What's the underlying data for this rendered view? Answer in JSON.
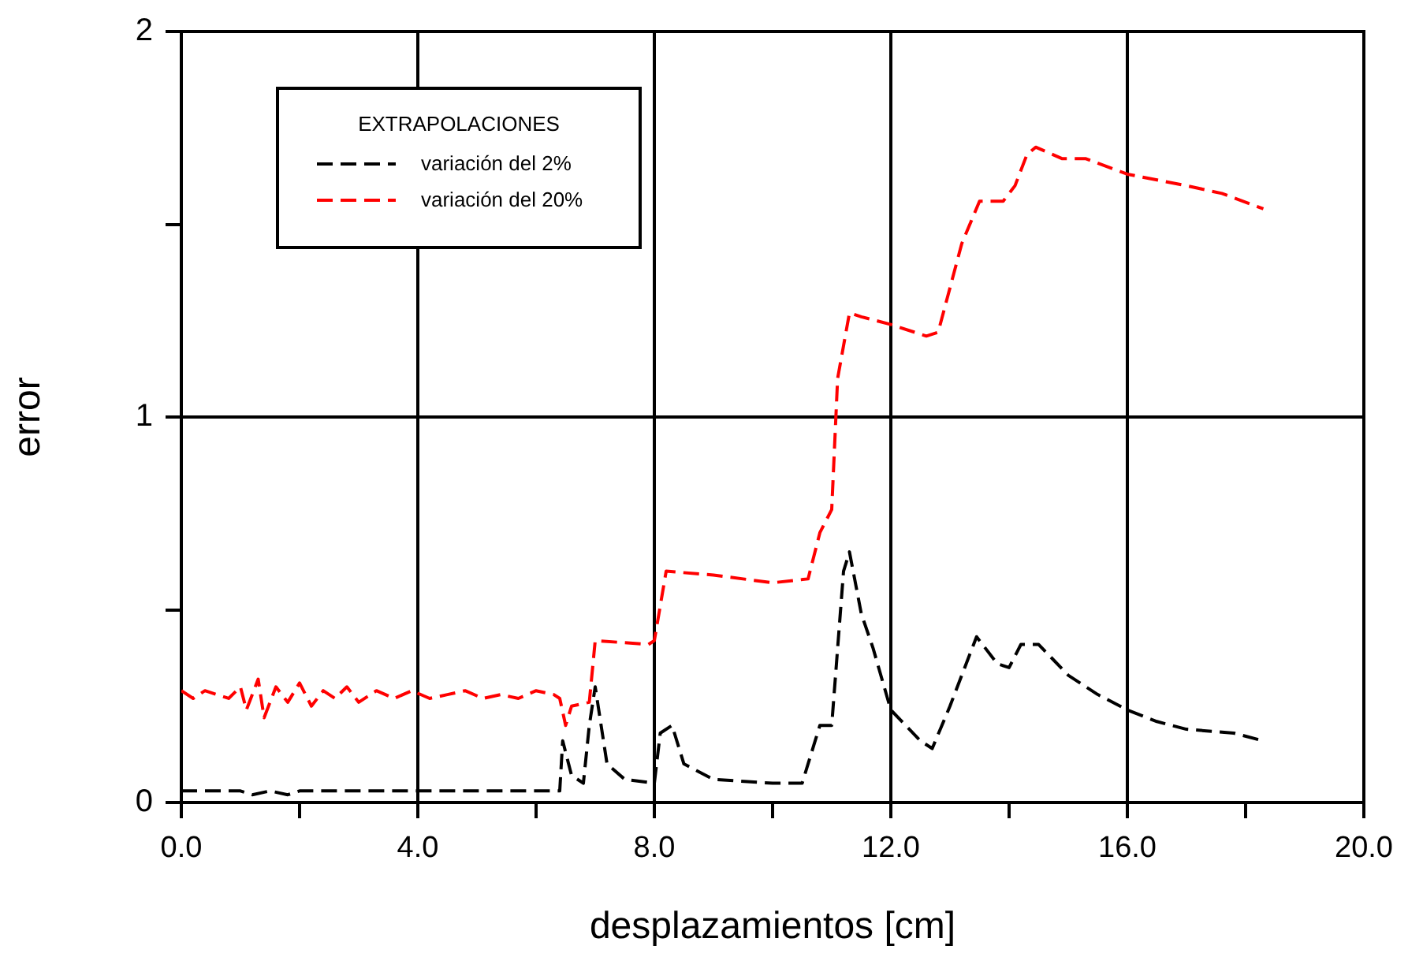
{
  "chart_data": {
    "type": "line",
    "xlabel": "desplazamientos [cm]",
    "ylabel": "error",
    "legend_title": "EXTRAPOLACIONES",
    "legend": "top left",
    "grid": true,
    "marker": "none",
    "line_style": "dashed",
    "xlim": [
      0,
      20
    ],
    "xticks": [
      {
        "value": 0,
        "label": "0.0"
      },
      {
        "value": 2,
        "label": null
      },
      {
        "value": 4,
        "label": "4.0"
      },
      {
        "value": 6,
        "label": null
      },
      {
        "value": 8,
        "label": "8.0"
      },
      {
        "value": 10,
        "label": null
      },
      {
        "value": 12,
        "label": "12.0"
      },
      {
        "value": 14,
        "label": null
      },
      {
        "value": 16,
        "label": "16.0"
      },
      {
        "value": 18,
        "label": null
      },
      {
        "value": 20,
        "label": "20.0"
      }
    ],
    "ylim": [
      0,
      2
    ],
    "yticks": [
      0,
      {
        "value": 0.5,
        "label": null
      },
      1,
      {
        "value": 1.5,
        "label": null
      },
      2
    ],
    "series": [
      {
        "name": "variación del 2%",
        "color": "#000000",
        "x": [
          0,
          1,
          1.2,
          1.5,
          1.8,
          2,
          2.5,
          3,
          4,
          5,
          6,
          6.4,
          6.45,
          6.6,
          6.8,
          6.9,
          7.0,
          7.2,
          7.5,
          8.0,
          8.1,
          8.3,
          8.5,
          9,
          10,
          10.5,
          10.7,
          10.8,
          11.0,
          11.2,
          11.3,
          11.5,
          11.7,
          12.0,
          12.5,
          12.7,
          13.0,
          13.3,
          13.45,
          13.8,
          14.0,
          14.2,
          14.5,
          15,
          15.5,
          16,
          16.5,
          17,
          17.8,
          18.3
        ],
        "values": [
          0.03,
          0.03,
          0.02,
          0.03,
          0.02,
          0.03,
          0.03,
          0.03,
          0.03,
          0.03,
          0.03,
          0.03,
          0.16,
          0.07,
          0.05,
          0.2,
          0.3,
          0.1,
          0.06,
          0.05,
          0.18,
          0.2,
          0.1,
          0.06,
          0.05,
          0.05,
          0.15,
          0.2,
          0.2,
          0.6,
          0.65,
          0.49,
          0.4,
          0.24,
          0.16,
          0.14,
          0.25,
          0.37,
          0.43,
          0.36,
          0.35,
          0.41,
          0.41,
          0.33,
          0.28,
          0.24,
          0.21,
          0.19,
          0.18,
          0.16
        ]
      },
      {
        "name": "variación del 20%",
        "color": "#ff0000",
        "x": [
          0,
          0.2,
          0.4,
          0.6,
          0.8,
          1.0,
          1.1,
          1.3,
          1.4,
          1.6,
          1.8,
          2.0,
          2.2,
          2.4,
          2.6,
          2.8,
          3.0,
          3.3,
          3.6,
          3.9,
          4.2,
          4.5,
          4.8,
          5.1,
          5.4,
          5.7,
          6.0,
          6.3,
          6.4,
          6.5,
          6.6,
          6.9,
          7.0,
          7.9,
          8.0,
          8.2,
          9.0,
          10.0,
          10.6,
          10.8,
          11.0,
          11.1,
          11.3,
          11.5,
          12.0,
          12.6,
          12.8,
          13.2,
          13.5,
          13.9,
          14.1,
          14.3,
          14.45,
          14.9,
          15.3,
          16,
          17,
          17.6,
          18.3
        ],
        "values": [
          0.29,
          0.27,
          0.29,
          0.28,
          0.27,
          0.3,
          0.24,
          0.32,
          0.22,
          0.3,
          0.26,
          0.31,
          0.25,
          0.29,
          0.27,
          0.3,
          0.26,
          0.29,
          0.27,
          0.29,
          0.27,
          0.28,
          0.29,
          0.27,
          0.28,
          0.27,
          0.29,
          0.28,
          0.27,
          0.2,
          0.25,
          0.26,
          0.42,
          0.41,
          0.42,
          0.6,
          0.59,
          0.57,
          0.58,
          0.7,
          0.76,
          1.1,
          1.27,
          1.26,
          1.24,
          1.21,
          1.22,
          1.45,
          1.56,
          1.56,
          1.6,
          1.68,
          1.7,
          1.67,
          1.67,
          1.63,
          1.6,
          1.58,
          1.54
        ]
      }
    ]
  }
}
